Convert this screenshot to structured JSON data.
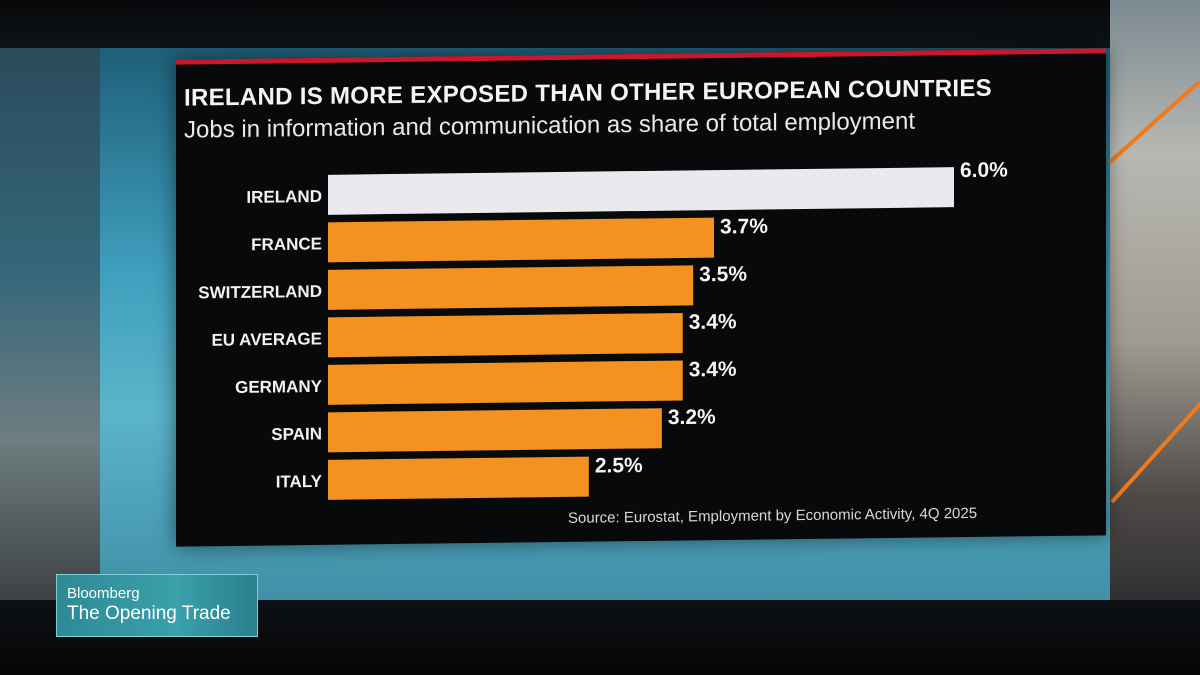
{
  "chart_data": {
    "type": "bar",
    "orientation": "horizontal",
    "title": "IRELAND IS MORE EXPOSED THAN OTHER EUROPEAN COUNTRIES",
    "subtitle": "Jobs in information and communication as share of total employment",
    "categories": [
      "IRELAND",
      "FRANCE",
      "SWITZERLAND",
      "EU AVERAGE",
      "GERMANY",
      "SPAIN",
      "ITALY"
    ],
    "values": [
      6.0,
      3.7,
      3.5,
      3.4,
      3.4,
      3.2,
      2.5
    ],
    "value_labels": [
      "6.0%",
      "3.7%",
      "3.5%",
      "3.4%",
      "3.4%",
      "3.2%",
      "2.5%"
    ],
    "unit": "%",
    "xlim": [
      0,
      6.0
    ],
    "highlight_category": "IRELAND",
    "colors": {
      "highlight": "#e9e9ee",
      "default": "#f39221",
      "accent": "#c8182a"
    },
    "grid": false,
    "legend": "none",
    "source": "Source: Eurostat, Employment by Economic Activity, 4Q 2025"
  },
  "brand": {
    "name": "Bloomberg",
    "show": "The Opening Trade"
  }
}
